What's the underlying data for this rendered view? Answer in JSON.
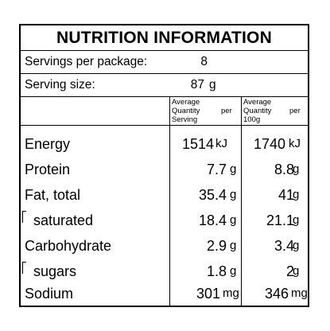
{
  "title": "NUTRITION INFORMATION",
  "servings": {
    "label": "Servings per package:",
    "value": "8"
  },
  "serving_size": {
    "label": "Serving size:",
    "value": "87",
    "unit": "g"
  },
  "headers": {
    "per_serving": {
      "line1": "Average",
      "line2": "Quantity",
      "per": "per",
      "line3": "Serving"
    },
    "per_100g": {
      "line1": "Average",
      "line2": "Quantity",
      "per": "per",
      "line3": "100g"
    }
  },
  "nutrients": [
    {
      "name": "Energy",
      "per_serving": "1514",
      "per_serving_unit": "kJ",
      "per_100g": "1740",
      "per_100g_unit": "kJ"
    },
    {
      "name": "Protein",
      "per_serving": "7.7",
      "per_serving_unit": "g",
      "per_100g": "8.8",
      "per_100g_unit": "g"
    },
    {
      "name": "Fat, total",
      "per_serving": "35.4",
      "per_serving_unit": "g",
      "per_100g": "41",
      "per_100g_unit": "g"
    },
    {
      "name": "saturated",
      "per_serving": "18.4",
      "per_serving_unit": "g",
      "per_100g": "21.1",
      "per_100g_unit": "g"
    },
    {
      "name": "Carbohydrate",
      "per_serving": "2.9",
      "per_serving_unit": "g",
      "per_100g": "3.4",
      "per_100g_unit": "g"
    },
    {
      "name": "sugars",
      "per_serving": "1.8",
      "per_serving_unit": "g",
      "per_100g": "2",
      "per_100g_unit": "g"
    },
    {
      "name": "Sodium",
      "per_serving": "301",
      "per_serving_unit": "mg",
      "per_100g": "346",
      "per_100g_unit": "mg"
    }
  ]
}
